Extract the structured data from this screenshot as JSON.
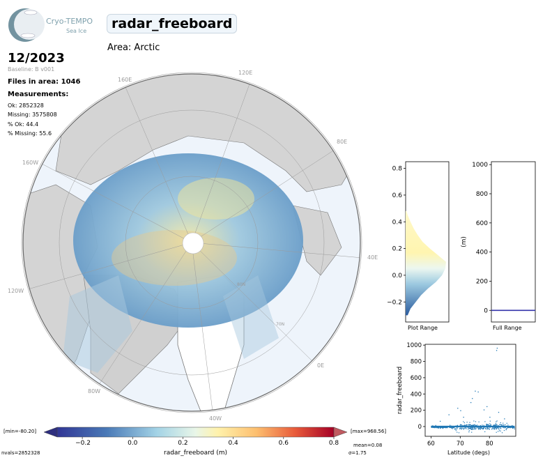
{
  "header": {
    "logo_name": "Cryo-TEMPO",
    "logo_sub": "Sea Ice",
    "title": "radar_freeboard",
    "area": "Area: Arctic",
    "date": "12/2023",
    "baseline": "Baseline: B v001",
    "files": "Files in area: 1046"
  },
  "measurements": {
    "heading": "Measurements:",
    "ok": "Ok: 2852328",
    "missing": "Missing: 3575808",
    "pct_ok": "% Ok: 44.4",
    "pct_missing": "% Missing: 55.6"
  },
  "map": {
    "lon_labels": [
      "120E",
      "160E",
      "80E",
      "160W",
      "40E",
      "120W",
      "0E",
      "80W",
      "40W"
    ],
    "lat_labels": [
      "80N",
      "70N"
    ]
  },
  "colorbar": {
    "label": "radar_freeboard (m)",
    "ticks": [
      "−0.2",
      "0.0",
      "0.2",
      "0.4",
      "0.6",
      "0.8"
    ],
    "min_text": "[min=-80.20]",
    "max_text": "[max=968.56]",
    "mean_text": "mean=0.08",
    "sigma_text": "σ=1.75",
    "nvals_text": "nvals=2852328"
  },
  "chart_data": [
    {
      "type": "area",
      "xlabel": "Plot Range",
      "ylim": [
        -0.35,
        0.85
      ],
      "yticks": [
        "−0.2",
        "0.0",
        "0.2",
        "0.4",
        "0.6",
        "0.8"
      ],
      "ytick_values": [
        -0.2,
        0.0,
        0.2,
        0.4,
        0.6,
        0.8
      ],
      "x": [
        -0.3,
        -0.25,
        -0.2,
        -0.15,
        -0.1,
        -0.05,
        0.0,
        0.05,
        0.1,
        0.15,
        0.2,
        0.25,
        0.3,
        0.35,
        0.4,
        0.45,
        0.48
      ],
      "values": [
        0.05,
        0.12,
        0.25,
        0.38,
        0.55,
        0.75,
        0.9,
        0.98,
        1.0,
        0.8,
        0.6,
        0.42,
        0.3,
        0.2,
        0.12,
        0.05,
        0.02
      ]
    },
    {
      "type": "line",
      "xlabel": "Full Range",
      "ylabel": "(m)",
      "ylim": [
        -80,
        1020
      ],
      "yticks": [
        "0",
        "200",
        "400",
        "600",
        "800",
        "1000"
      ],
      "ytick_values": [
        0,
        200,
        400,
        600,
        800,
        1000
      ],
      "x": [
        0,
        1
      ],
      "values": [
        0,
        0
      ]
    },
    {
      "type": "scatter",
      "xlabel": "Latitude (degs)",
      "ylabel": "radar_freeboard",
      "xlim": [
        58,
        89
      ],
      "ylim": [
        -120,
        1010
      ],
      "xticks": [
        "60",
        "70",
        "80"
      ],
      "xtick_values": [
        60,
        70,
        80
      ],
      "yticks": [
        "0",
        "200",
        "400",
        "600",
        "800",
        "1000"
      ],
      "ytick_values": [
        0,
        200,
        400,
        600,
        800,
        1000
      ],
      "outliers": [
        {
          "x": 82.5,
          "y": 968
        },
        {
          "x": 82.3,
          "y": 940
        },
        {
          "x": 75,
          "y": 440
        },
        {
          "x": 76,
          "y": 430
        },
        {
          "x": 74,
          "y": 350
        },
        {
          "x": 73.5,
          "y": 300
        },
        {
          "x": 79,
          "y": 250
        },
        {
          "x": 78,
          "y": 210
        },
        {
          "x": 69,
          "y": 230
        },
        {
          "x": 70,
          "y": 200
        },
        {
          "x": 66,
          "y": 150
        },
        {
          "x": 80,
          "y": 120
        },
        {
          "x": 83,
          "y": 180
        },
        {
          "x": 71,
          "y": 120
        },
        {
          "x": 85,
          "y": 100
        },
        {
          "x": 63,
          "y": 70
        }
      ]
    }
  ]
}
